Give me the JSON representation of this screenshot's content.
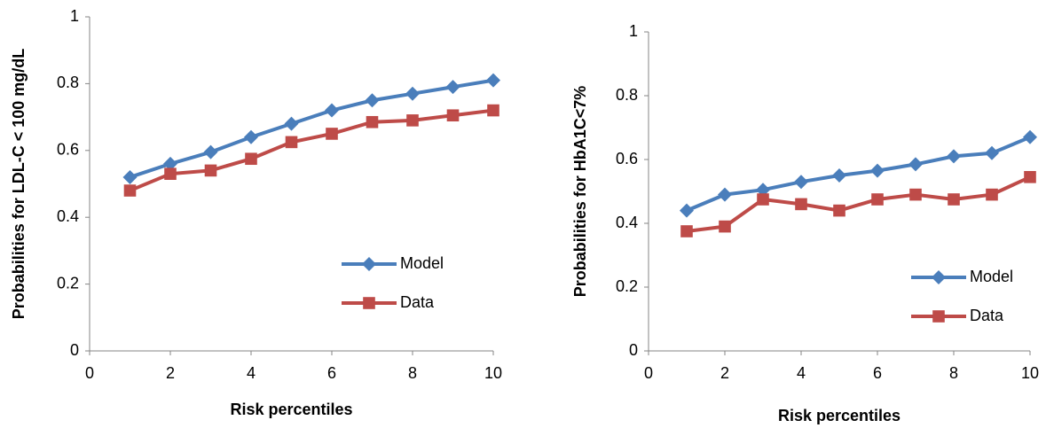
{
  "chart_data": [
    {
      "type": "line",
      "y_label": "Probabilities for LDL-C < 100 mg/dL",
      "x_label": "Risk percentiles",
      "x": [
        1,
        2,
        3,
        4,
        5,
        6,
        7,
        8,
        9,
        10
      ],
      "xlim": [
        0,
        10
      ],
      "xticks": [
        0,
        2,
        4,
        6,
        8,
        10
      ],
      "ylim": [
        0,
        1
      ],
      "yticks": [
        0,
        0.2,
        0.4,
        0.6,
        0.8,
        1
      ],
      "legend": "right",
      "series": [
        {
          "name": "Model",
          "color": "#4a7ebb",
          "marker": "diamond",
          "values": [
            0.52,
            0.56,
            0.595,
            0.64,
            0.68,
            0.72,
            0.75,
            0.77,
            0.79,
            0.81
          ]
        },
        {
          "name": "Data",
          "color": "#be4b48",
          "marker": "square",
          "values": [
            0.48,
            0.53,
            0.54,
            0.575,
            0.625,
            0.65,
            0.685,
            0.69,
            0.705,
            0.72
          ]
        }
      ]
    },
    {
      "type": "line",
      "y_label": "Probabilities for HbA1C<7%",
      "x_label": "Risk percentiles",
      "x": [
        1,
        2,
        3,
        4,
        5,
        6,
        7,
        8,
        9,
        10
      ],
      "xlim": [
        0,
        10
      ],
      "xticks": [
        0,
        2,
        4,
        6,
        8,
        10
      ],
      "ylim": [
        0,
        1
      ],
      "yticks": [
        0,
        0.2,
        0.4,
        0.6,
        0.8,
        1
      ],
      "legend": "right",
      "series": [
        {
          "name": "Model",
          "color": "#4a7ebb",
          "marker": "diamond",
          "values": [
            0.44,
            0.49,
            0.505,
            0.53,
            0.55,
            0.565,
            0.585,
            0.61,
            0.62,
            0.67
          ]
        },
        {
          "name": "Data",
          "color": "#be4b48",
          "marker": "square",
          "values": [
            0.375,
            0.39,
            0.475,
            0.46,
            0.44,
            0.475,
            0.49,
            0.475,
            0.49,
            0.545
          ]
        }
      ]
    }
  ]
}
